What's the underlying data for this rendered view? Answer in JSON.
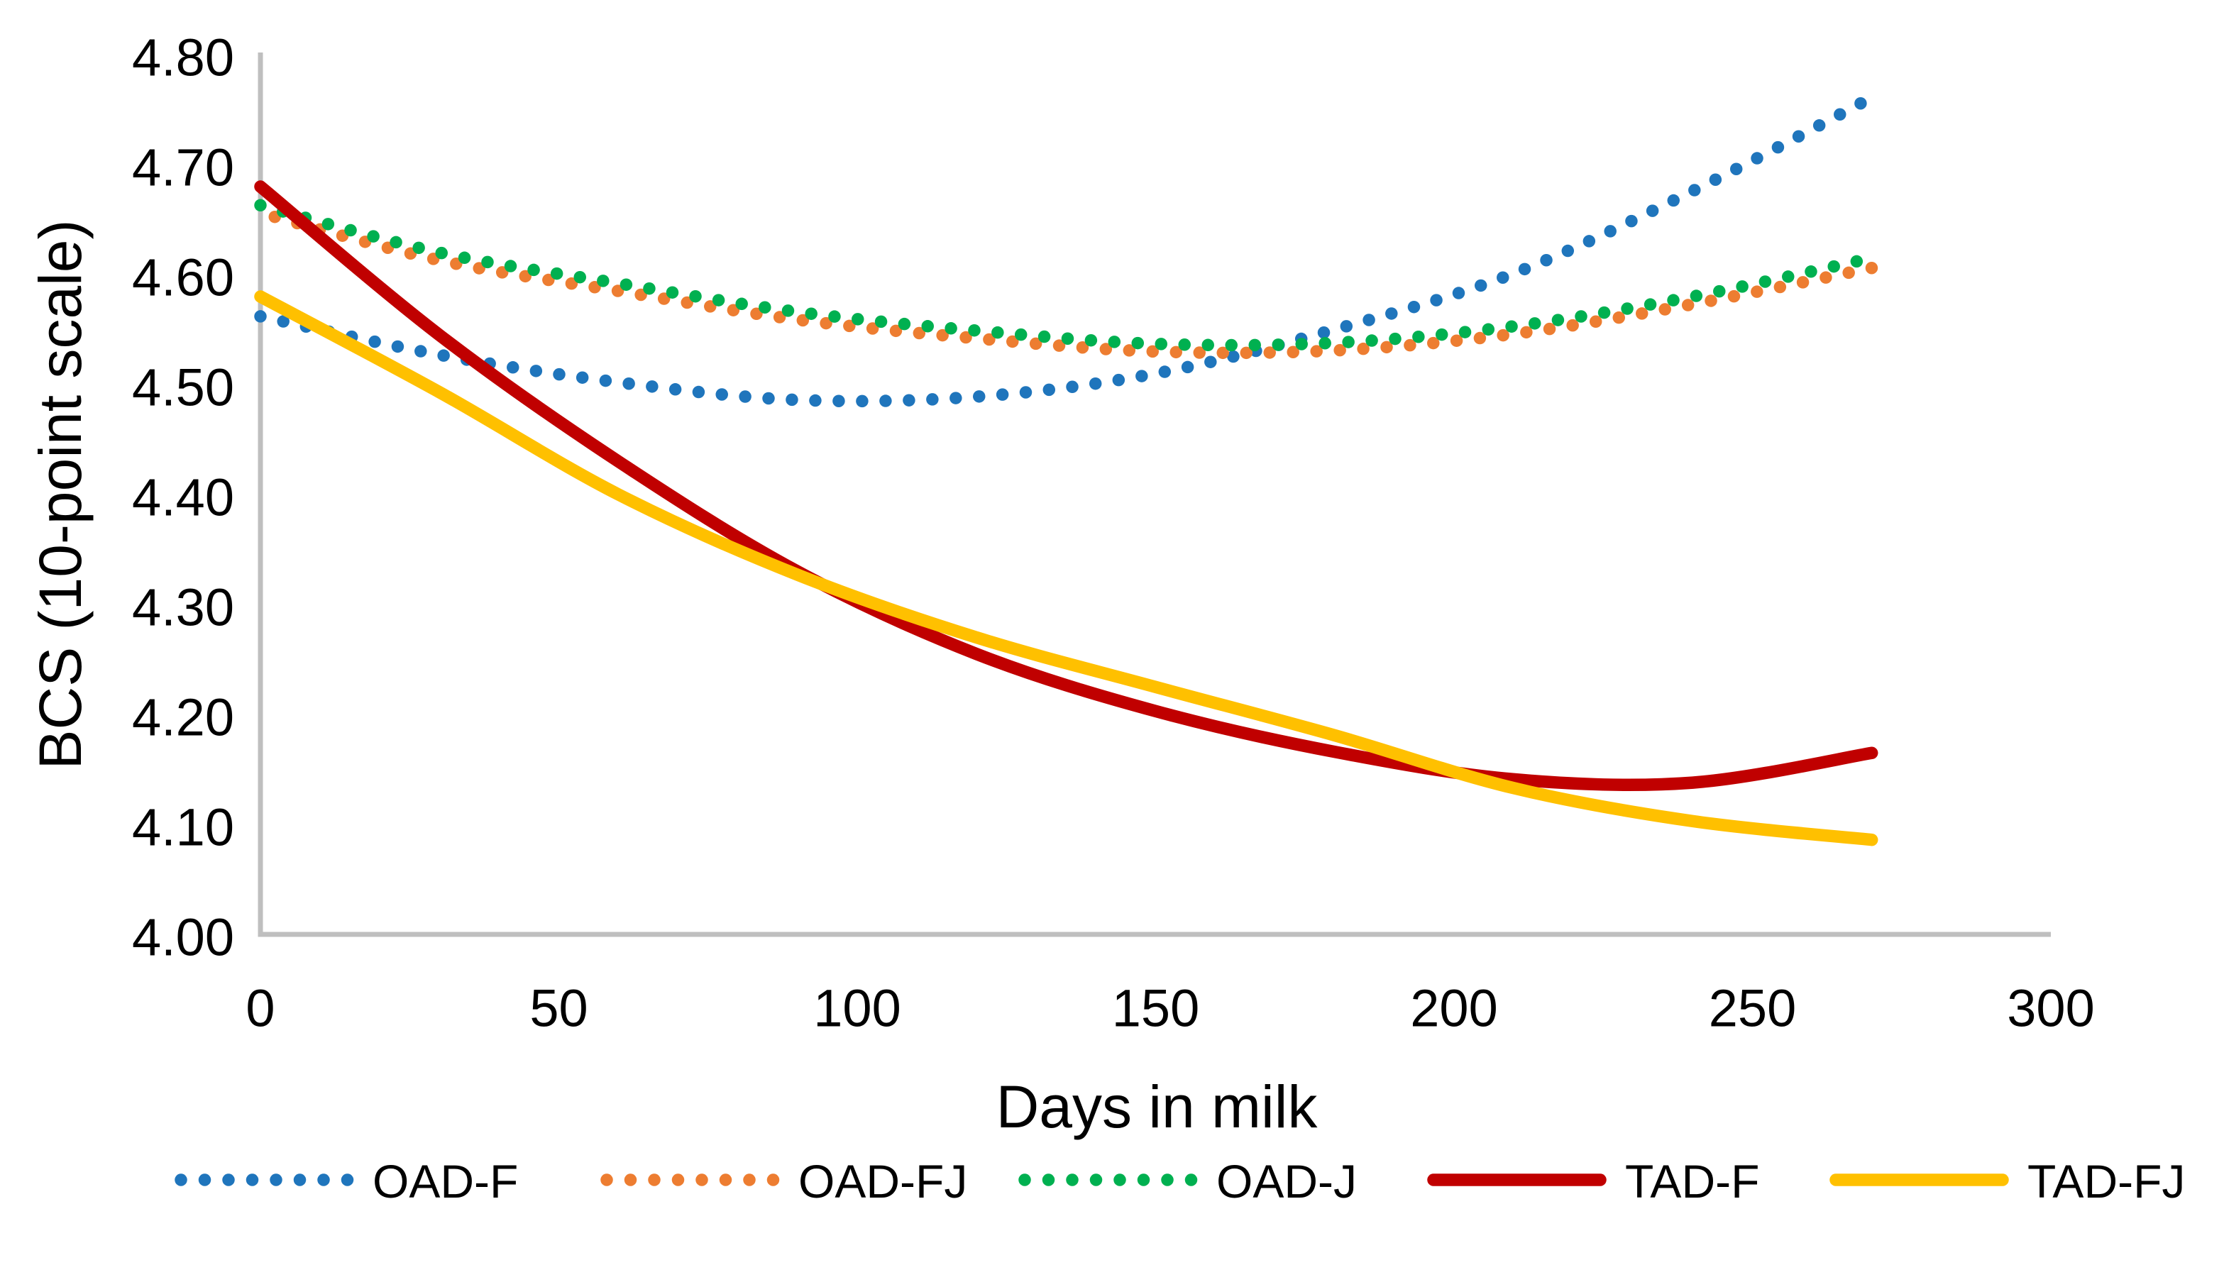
{
  "figure": {
    "background": "#FFFFFF"
  },
  "chart_data": {
    "type": "line",
    "title": "",
    "xlabel": "Days in milk",
    "ylabel": "BCS (10-point scale)",
    "xlim": [
      0,
      300
    ],
    "ylim": [
      4.0,
      4.8
    ],
    "grid": false,
    "legend_position": "bottom",
    "axis_color": "#BFBFBF",
    "text_color": "#000000",
    "x_ticks": [
      "0",
      "50",
      "100",
      "150",
      "200",
      "250",
      "300"
    ],
    "y_ticks": [
      "4.00",
      "4.10",
      "4.20",
      "4.30",
      "4.40",
      "4.50",
      "4.60",
      "4.70",
      "4.80"
    ],
    "x": [
      0,
      30,
      60,
      90,
      120,
      150,
      180,
      210,
      240,
      270
    ],
    "series": [
      {
        "name": "OAD-F",
        "color": "#1F75BC",
        "style": "dotted",
        "values": [
          4.562,
          4.527,
          4.502,
          4.486,
          4.489,
          4.51,
          4.55,
          4.601,
          4.676,
          4.761
        ]
      },
      {
        "name": "OAD-FJ",
        "color": "#ED7D31",
        "style": "dotted",
        "values": [
          4.656,
          4.613,
          4.585,
          4.559,
          4.542,
          4.53,
          4.531,
          4.546,
          4.573,
          4.606
        ]
      },
      {
        "name": "OAD-J",
        "color": "#00B050",
        "style": "dotted",
        "values": [
          4.663,
          4.62,
          4.592,
          4.566,
          4.549,
          4.537,
          4.538,
          4.553,
          4.58,
          4.615
        ]
      },
      {
        "name": "TAD-F",
        "color": "#C00000",
        "style": "solid",
        "values": [
          4.68,
          4.545,
          4.43,
          4.33,
          4.255,
          4.203,
          4.166,
          4.141,
          4.138,
          4.165
        ]
      },
      {
        "name": "TAD-FJ",
        "color": "#FFC000",
        "style": "solid",
        "values": [
          4.58,
          4.493,
          4.4,
          4.327,
          4.27,
          4.225,
          4.181,
          4.133,
          4.103,
          4.086
        ]
      }
    ]
  }
}
